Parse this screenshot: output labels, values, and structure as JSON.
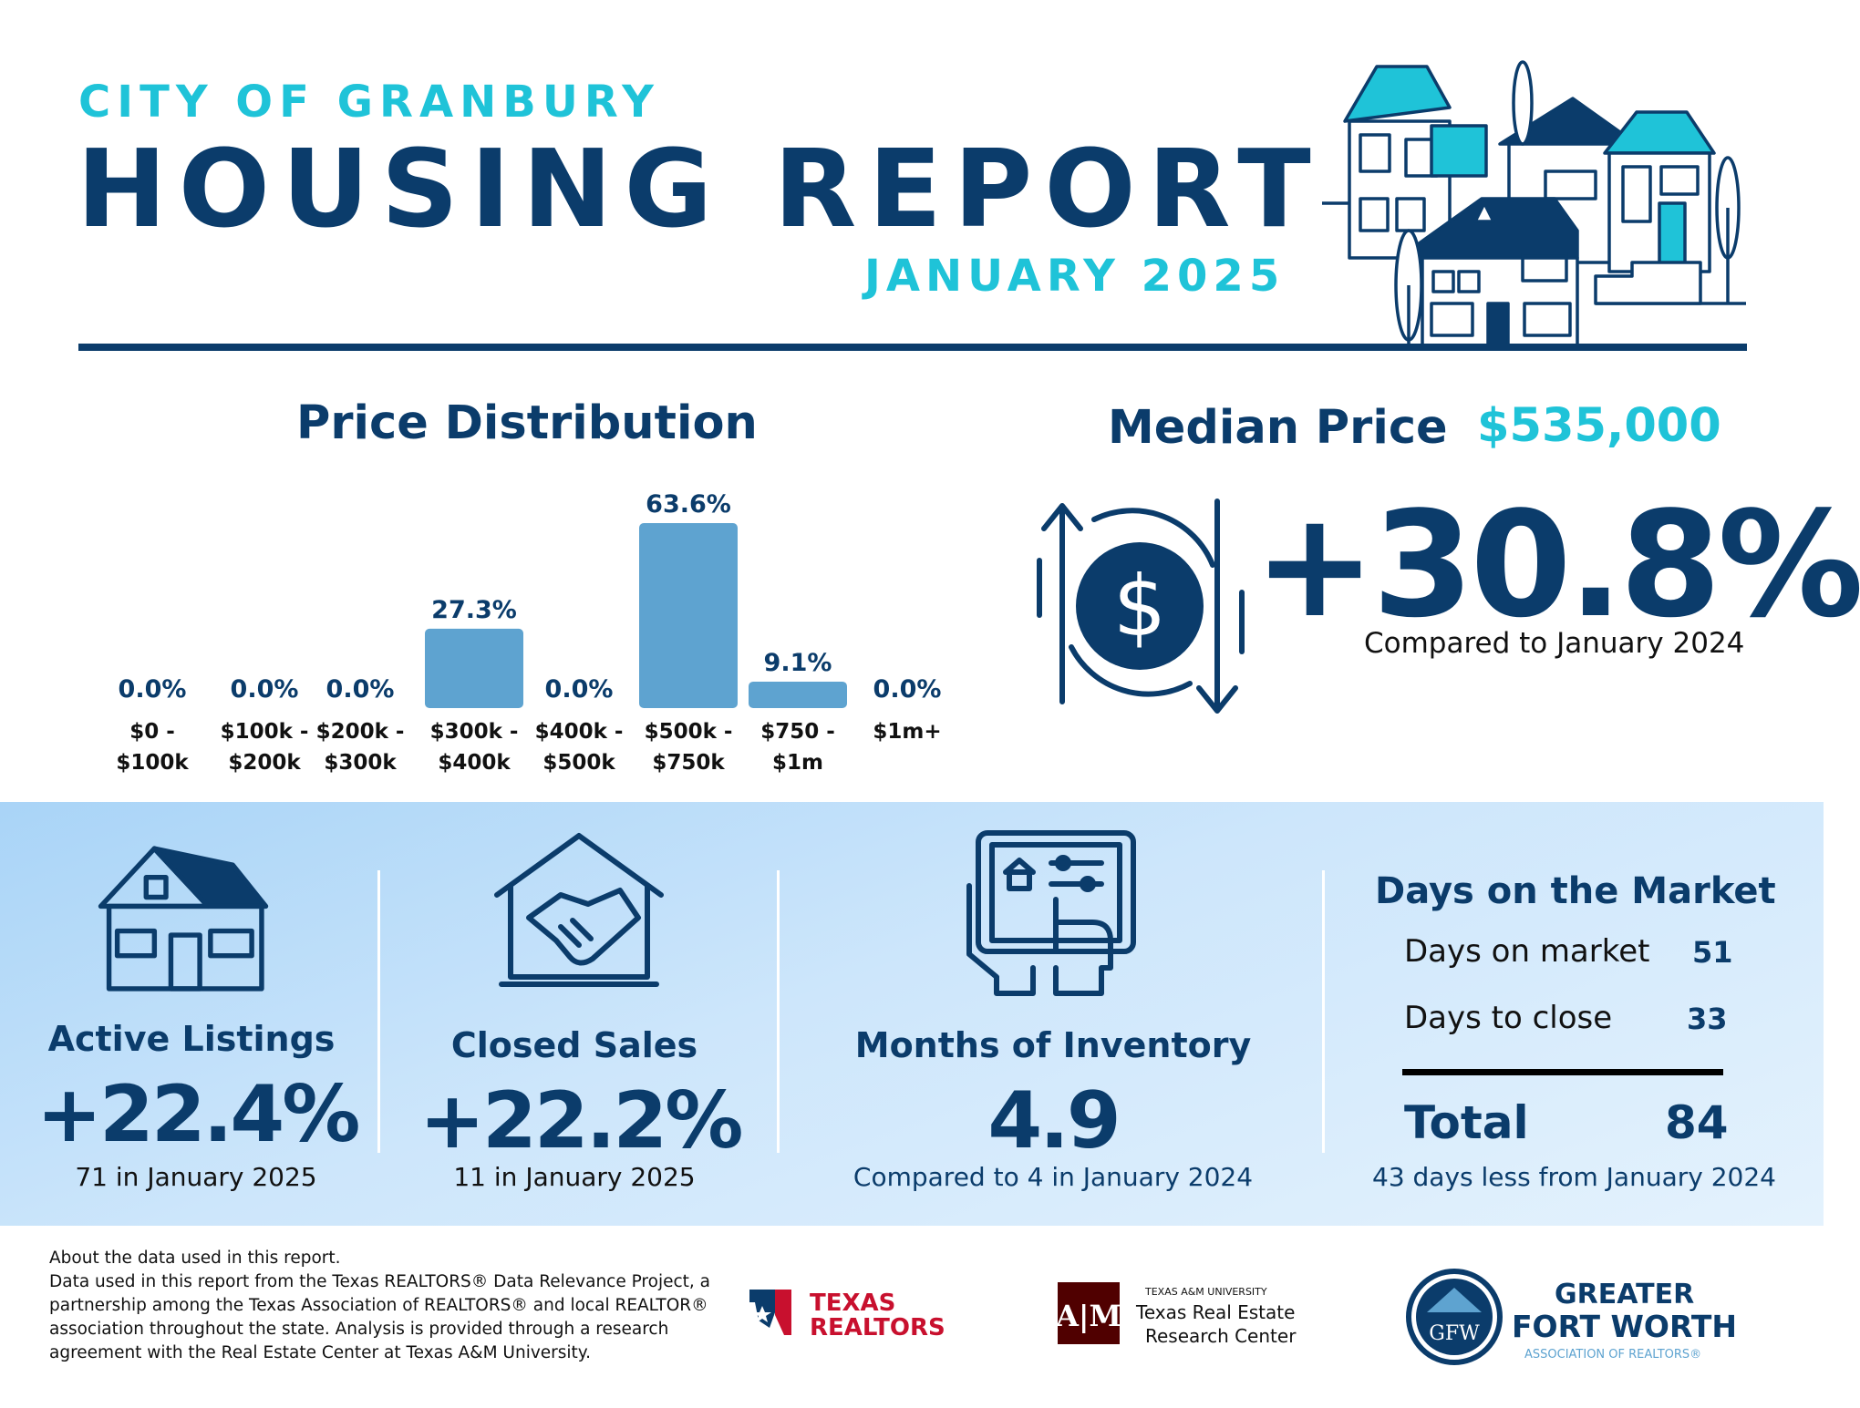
{
  "header": {
    "city": "CITY OF GRANBURY",
    "title": "HOUSING REPORT",
    "month": "JANUARY 2025"
  },
  "price_distribution": {
    "title": "Price Distribution"
  },
  "chart_data": {
    "type": "bar",
    "title": "Price Distribution",
    "categories": [
      [
        "$0 -",
        "$100k"
      ],
      [
        "$100k -",
        "$200k"
      ],
      [
        "$200k -",
        "$300k"
      ],
      [
        "$300k -",
        "$400k"
      ],
      [
        "$400k -",
        "$500k"
      ],
      [
        "$500k -",
        "$750k"
      ],
      [
        "$750 -",
        "$1m"
      ],
      [
        "$1m+"
      ]
    ],
    "values": [
      0.0,
      0.0,
      0.0,
      27.3,
      0.0,
      63.6,
      9.1,
      0.0
    ],
    "value_labels": [
      "0.0%",
      "0.0%",
      "0.0%",
      "27.3%",
      "0.0%",
      "63.6%",
      "9.1%",
      "0.0%"
    ],
    "ylim": [
      0,
      63.6
    ],
    "bar_color": "#5ea3d0",
    "grid": false
  },
  "median_price": {
    "label": "Median Price",
    "value": "$535,000",
    "change": "+30.8%",
    "compare": "Compared to January 2024"
  },
  "stats": {
    "active_listings": {
      "label": "Active Listings",
      "value": "+22.4%",
      "note": "71 in January 2025"
    },
    "closed_sales": {
      "label": "Closed Sales",
      "value": "+22.2%",
      "note": "11 in January 2025"
    },
    "months_inventory": {
      "label": "Months of Inventory",
      "value": "4.9",
      "note": "Compared to 4 in January 2024"
    }
  },
  "days_on_market": {
    "title": "Days on the Market",
    "rows": [
      {
        "label": "Days on market",
        "value": "51"
      },
      {
        "label": "Days to close",
        "value": "33"
      }
    ],
    "total_label": "Total",
    "total_value": "84",
    "note": "43 days less from January 2024"
  },
  "footer": {
    "about_title": "About the data used in this report.",
    "about_body": "Data used in this report from the Texas REALTORS® Data Relevance Project, a partnership among the Texas Association of REALTORS® and local REALTOR® association throughout the state. Analysis is provided through a research agreement with the Real Estate Center at Texas A&M University.",
    "logos": {
      "texas_realtors": [
        "TEXAS",
        "REALTORS"
      ],
      "tamu": {
        "small": "TEXAS A&M UNIVERSITY",
        "line1": "Texas Real Estate",
        "line2": "Research Center"
      },
      "gfw": {
        "line1": "GREATER",
        "line2": "FORT WORTH",
        "line3": "ASSOCIATION OF REALTORS®"
      }
    }
  },
  "colors": {
    "navy": "#0b3c6b",
    "cyan": "#1fc3d8",
    "bar": "#5ea3d0",
    "band_start": "#a9d4f7",
    "band_end": "#e4f2fd"
  }
}
